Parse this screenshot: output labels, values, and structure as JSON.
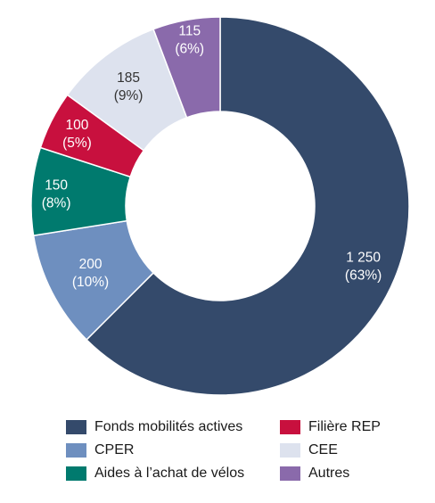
{
  "chart_data": {
    "type": "pie",
    "donut": true,
    "slices": [
      {
        "name": "Fonds mobilités actives",
        "value": 1250,
        "value_label": "1 250",
        "percent_label": "(63%)",
        "color": "#344a6b",
        "label_color": "#ffffff"
      },
      {
        "name": "CPER",
        "value": 200,
        "value_label": "200",
        "percent_label": "(10%)",
        "color": "#6e8fbf",
        "label_color": "#ffffff"
      },
      {
        "name": "Aides à l’achat de vélos",
        "value": 150,
        "value_label": "150",
        "percent_label": "(8%)",
        "color": "#007a6e",
        "label_color": "#ffffff"
      },
      {
        "name": "Filière REP",
        "value": 100,
        "value_label": "100",
        "percent_label": "(5%)",
        "color": "#c8103e",
        "label_color": "#ffffff"
      },
      {
        "name": "CEE",
        "value": 185,
        "value_label": "185",
        "percent_label": "(9%)",
        "color": "#dde2ee",
        "label_color": "#333333"
      },
      {
        "name": "Autres",
        "value": 115,
        "value_label": "115",
        "percent_label": "(6%)",
        "color": "#8a6aab",
        "label_color": "#ffffff"
      }
    ],
    "legend_placement": "bottom",
    "legend_order": [
      [
        0,
        3
      ],
      [
        1,
        4
      ],
      [
        2,
        5
      ]
    ]
  }
}
